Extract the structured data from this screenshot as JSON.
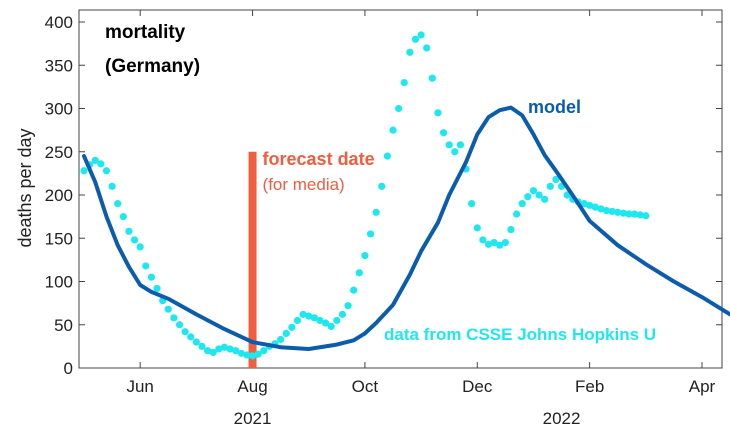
{
  "chart_data": {
    "type": "line",
    "title": "mortality",
    "subtitle": "(Germany)",
    "ylabel": "deaths per day",
    "xlabel": "",
    "ylim": [
      0,
      410
    ],
    "xlim": [
      0,
      11.7
    ],
    "yticks": [
      0,
      50,
      100,
      150,
      200,
      250,
      300,
      350,
      400
    ],
    "xticks": [
      {
        "pos": 1.0,
        "label": "Jun"
      },
      {
        "pos": 3.0,
        "label": "Aug"
      },
      {
        "pos": 5.0,
        "label": "Oct"
      },
      {
        "pos": 7.0,
        "label": "Dec"
      },
      {
        "pos": 9.0,
        "label": "Feb"
      },
      {
        "pos": 11.0,
        "label": "Apr"
      }
    ],
    "year_labels": [
      {
        "pos": 3.0,
        "label": "2021"
      },
      {
        "pos": 8.5,
        "label": "2022"
      }
    ],
    "forecast": {
      "x": 3.0,
      "label": "forecast date",
      "sublabel": "(for media)",
      "color": "#f25c3f"
    },
    "series": [
      {
        "name": "model",
        "style": "line",
        "color": "#0b5cad",
        "x": [
          0,
          0.2,
          0.4,
          0.6,
          0.8,
          1.0,
          1.2,
          1.5,
          2.0,
          2.5,
          3.0,
          3.5,
          4.0,
          4.5,
          4.8,
          5.0,
          5.2,
          5.5,
          5.8,
          6.0,
          6.3,
          6.5,
          6.8,
          7.0,
          7.2,
          7.4,
          7.6,
          7.8,
          8.0,
          8.2,
          8.4,
          8.6,
          8.8,
          9.0,
          9.5,
          10.0,
          10.5,
          11.0,
          11.5
        ],
        "values": [
          245,
          215,
          175,
          142,
          117,
          96,
          88,
          80,
          62,
          45,
          30,
          24,
          22,
          27,
          32,
          40,
          52,
          73,
          108,
          135,
          168,
          200,
          238,
          270,
          290,
          298,
          301,
          292,
          270,
          246,
          228,
          209,
          190,
          170,
          142,
          120,
          100,
          82,
          62
        ]
      },
      {
        "name": "data from CSSE Johns Hopkins U",
        "style": "markers",
        "color": "#1ee8ee",
        "x": [
          0.0,
          0.1,
          0.2,
          0.3,
          0.4,
          0.5,
          0.6,
          0.7,
          0.8,
          0.9,
          1.0,
          1.1,
          1.2,
          1.3,
          1.4,
          1.5,
          1.6,
          1.7,
          1.8,
          1.9,
          2.0,
          2.1,
          2.2,
          2.3,
          2.4,
          2.5,
          2.6,
          2.7,
          2.8,
          2.9,
          3.0,
          3.1,
          3.2,
          3.3,
          3.4,
          3.5,
          3.6,
          3.7,
          3.8,
          3.9,
          4.0,
          4.1,
          4.2,
          4.3,
          4.4,
          4.5,
          4.6,
          4.7,
          4.8,
          4.9,
          5.0,
          5.1,
          5.2,
          5.3,
          5.4,
          5.5,
          5.6,
          5.7,
          5.8,
          5.9,
          6.0,
          6.1,
          6.2,
          6.3,
          6.4,
          6.5,
          6.6,
          6.7,
          6.8,
          6.9,
          7.0,
          7.1,
          7.2,
          7.3,
          7.4,
          7.5,
          7.6,
          7.7,
          7.8,
          7.9,
          8.0,
          8.1,
          8.2,
          8.3,
          8.4,
          8.5,
          8.6,
          8.7,
          8.8,
          8.9,
          9.0,
          9.1,
          9.2,
          9.3,
          9.4,
          9.5,
          9.6,
          9.7,
          9.8,
          9.9,
          10.0
        ],
        "values": [
          228,
          235,
          240,
          236,
          228,
          210,
          190,
          175,
          158,
          148,
          140,
          118,
          105,
          92,
          78,
          68,
          58,
          50,
          42,
          36,
          30,
          25,
          20,
          18,
          22,
          24,
          22,
          20,
          17,
          15,
          14,
          16,
          20,
          25,
          28,
          33,
          40,
          47,
          55,
          62,
          60,
          58,
          55,
          52,
          48,
          55,
          62,
          72,
          90,
          110,
          130,
          155,
          180,
          210,
          245,
          275,
          300,
          330,
          365,
          380,
          385,
          370,
          335,
          295,
          272,
          258,
          250,
          258,
          230,
          190,
          162,
          148,
          143,
          145,
          142,
          145,
          160,
          178,
          190,
          198,
          205,
          200,
          195,
          210,
          218,
          210,
          200,
          195,
          192,
          190,
          188,
          186,
          184,
          182,
          181,
          180,
          179,
          178,
          178,
          177,
          176
        ]
      }
    ]
  },
  "legend": {
    "model_label": "model",
    "model_color": "#0b5cad",
    "data_label": "data from CSSE Johns Hopkins U",
    "data_color": "#1ee8ee"
  }
}
